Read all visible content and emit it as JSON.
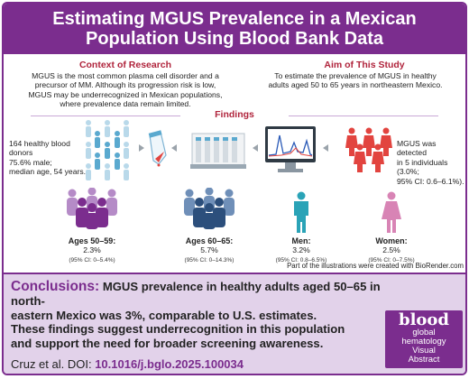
{
  "title": {
    "line1": "Estimating MGUS Prevalence in a Mexican",
    "line2": "Population Using Blood Bank Data"
  },
  "context": {
    "heading": "Context of Research",
    "lines": [
      "MGUS is the most common plasma cell disorder and a",
      "precursor of MM. Although its progression risk is low,",
      "MGUS may be underrecognized in Mexican populations,",
      "where prevalence data remain limited."
    ]
  },
  "aim": {
    "heading": "Aim of This Study",
    "lines": [
      "To estimate the prevalence of MGUS in healthy",
      "adults aged 50 to 65 years in northeastern Mexico."
    ]
  },
  "findings": {
    "heading": "Findings",
    "donors": [
      "164 healthy blood",
      "donors",
      "75.6% male;",
      "median age, 54 years."
    ],
    "detected": [
      "MGUS was detected",
      "in 5 individuals",
      "(3.0%;",
      "95% CI: 0.6–6.1%)."
    ],
    "groups": [
      {
        "label": "Ages 50–59:",
        "value": "2.3%",
        "ci": "(95% CI: 0–5.4%)"
      },
      {
        "label": "Ages 60–65:",
        "value": "5.7%",
        "ci": "(95% CI: 0–14.3%)"
      },
      {
        "label": "Men:",
        "value": "3.2%",
        "ci": "(95% CI: 0.8–6.5%)"
      },
      {
        "label": "Women:",
        "value": "2.5%",
        "ci": "(95% CI: 0–7.5%)"
      }
    ],
    "credit": "Part of the illustrations were created with BioRender.com"
  },
  "conclusion": {
    "label": "Conclusions:",
    "line1": "MGUS prevalence in healthy adults aged 50–65 in north-",
    "line2": "eastern Mexico was 3%, comparable to U.S. estimates.",
    "line3": "These findings suggest underrecognition in this population",
    "line4": "and support the need for broader screening awareness.",
    "citation_prefix": "Cruz et al. DOI: ",
    "doi": "10.1016/j.bglo.2025.100034"
  },
  "badge": {
    "brand": "blood",
    "lines": [
      "global",
      "hematology",
      "Visual",
      "Abstract"
    ]
  },
  "colors": {
    "purple": "#7b2d8e",
    "red_heading": "#b0243c",
    "conclusion_bg": "#e2d2ea",
    "person_red": "#e2443f",
    "person_teal": "#2aa3b7",
    "person_pink": "#d884b5"
  }
}
